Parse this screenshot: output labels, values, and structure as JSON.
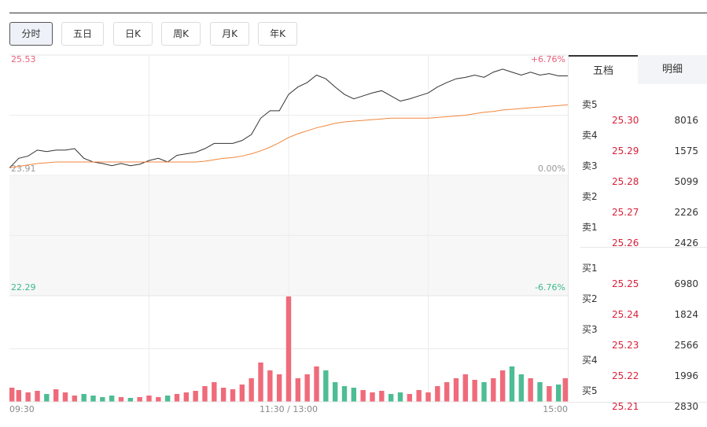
{
  "tabs": [
    "分时",
    "五日",
    "日K",
    "周K",
    "月K",
    "年K"
  ],
  "chart_data": {
    "type": "line",
    "x": [
      0,
      4,
      8,
      12,
      16,
      20,
      24,
      28,
      32,
      36,
      40,
      44,
      48,
      52,
      56,
      60,
      64,
      68,
      72,
      76,
      80,
      84,
      88,
      92,
      96,
      100,
      104,
      108,
      112,
      116,
      120,
      124,
      128,
      132,
      136,
      140,
      144,
      148,
      152,
      156,
      160,
      164,
      168,
      172,
      176,
      180,
      184,
      188,
      192,
      196,
      200,
      204,
      208,
      212,
      216,
      220,
      224,
      228,
      232,
      236,
      240
    ],
    "xlim": [
      0,
      240
    ],
    "xticks": [
      {
        "value": 0,
        "label": "09:30"
      },
      {
        "value": 120,
        "label": "11:30 / 13:00"
      },
      {
        "value": 240,
        "label": "15:00"
      }
    ],
    "xgrid": [
      60,
      120,
      180
    ],
    "ylim": [
      22.29,
      25.53
    ],
    "yticks": [
      22.29,
      23.91,
      25.53
    ],
    "ygrid": [
      23.1,
      23.91,
      24.72
    ],
    "y2lim": [
      -6.76,
      6.76
    ],
    "y2ticks": [
      {
        "value": -6.76,
        "label": "-6.76%"
      },
      {
        "value": 0,
        "label": "0.00%"
      },
      {
        "value": 6.76,
        "label": "+6.76%"
      }
    ],
    "series": [
      {
        "color": "#333333",
        "values": [
          24.01,
          24.14,
          24.17,
          24.25,
          24.23,
          24.25,
          24.25,
          24.27,
          24.14,
          24.09,
          24.07,
          24.04,
          24.07,
          24.04,
          24.06,
          24.11,
          24.14,
          24.09,
          24.18,
          24.2,
          24.22,
          24.27,
          24.34,
          24.34,
          24.34,
          24.38,
          24.46,
          24.68,
          24.78,
          24.78,
          25.0,
          25.1,
          25.16,
          25.26,
          25.21,
          25.1,
          25.0,
          24.94,
          24.98,
          25.02,
          25.05,
          24.98,
          24.91,
          24.94,
          24.98,
          25.02,
          25.1,
          25.16,
          25.21,
          25.23,
          25.26,
          25.23,
          25.3,
          25.34,
          25.3,
          25.26,
          25.3,
          25.26,
          25.28,
          25.25,
          25.25
        ]
      },
      {
        "color": "#f0873c",
        "values": [
          24.01,
          24.03,
          24.05,
          24.07,
          24.08,
          24.09,
          24.09,
          24.09,
          24.09,
          24.09,
          24.09,
          24.09,
          24.09,
          24.09,
          24.09,
          24.09,
          24.09,
          24.09,
          24.09,
          24.09,
          24.09,
          24.1,
          24.12,
          24.14,
          24.15,
          24.17,
          24.2,
          24.24,
          24.29,
          24.35,
          24.42,
          24.47,
          24.51,
          24.55,
          24.58,
          24.61,
          24.63,
          24.64,
          24.65,
          24.66,
          24.67,
          24.68,
          24.68,
          24.68,
          24.68,
          24.68,
          24.69,
          24.7,
          24.71,
          24.72,
          24.74,
          24.76,
          24.77,
          24.79,
          24.8,
          24.81,
          24.82,
          24.83,
          24.84,
          24.85,
          24.86
        ]
      }
    ],
    "volume": {
      "ylim": [
        0,
        135
      ],
      "up_color": "#f06b7a",
      "down_color": "#4dbd93",
      "values": [
        18,
        15,
        12,
        14,
        10,
        16,
        12,
        8,
        10,
        8,
        6,
        8,
        6,
        5,
        6,
        8,
        6,
        8,
        10,
        12,
        14,
        20,
        25,
        18,
        16,
        22,
        30,
        50,
        40,
        35,
        134,
        30,
        35,
        45,
        40,
        25,
        20,
        18,
        15,
        12,
        14,
        10,
        12,
        10,
        15,
        12,
        20,
        25,
        30,
        35,
        28,
        25,
        30,
        40,
        45,
        35,
        30,
        25,
        20,
        22,
        30
      ]
    }
  },
  "order_book": {
    "tabs": [
      "五档",
      "明细"
    ],
    "asks": [
      {
        "label": "卖5",
        "price": "25.30",
        "volume": 8016
      },
      {
        "label": "卖4",
        "price": "25.29",
        "volume": 1575
      },
      {
        "label": "卖3",
        "price": "25.28",
        "volume": 5099
      },
      {
        "label": "卖2",
        "price": "25.27",
        "volume": 2226
      },
      {
        "label": "卖1",
        "price": "25.26",
        "volume": 2426
      }
    ],
    "bids": [
      {
        "label": "买1",
        "price": "25.25",
        "volume": 6980
      },
      {
        "label": "买2",
        "price": "25.24",
        "volume": 1824
      },
      {
        "label": "买3",
        "price": "25.23",
        "volume": 2566
      },
      {
        "label": "买4",
        "price": "25.22",
        "volume": 1996
      },
      {
        "label": "买5",
        "price": "25.21",
        "volume": 2830
      }
    ]
  }
}
